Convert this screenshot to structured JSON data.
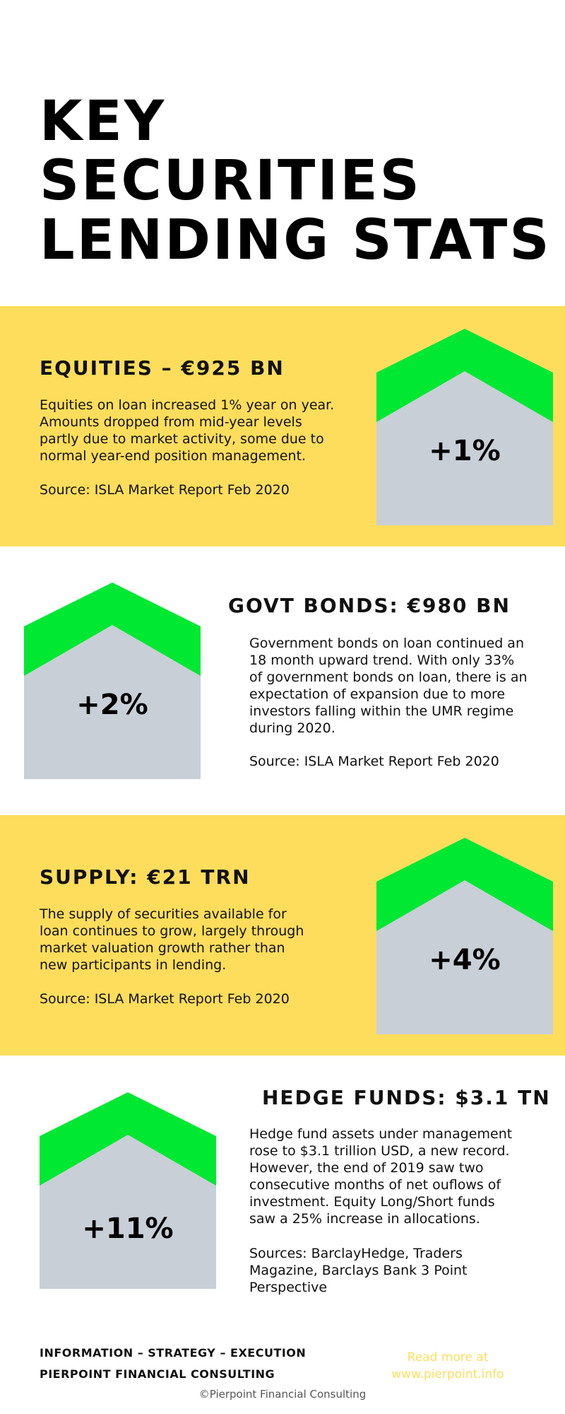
{
  "title": {
    "line1": "KEY SECURITIES",
    "line2": "LENDING STATS"
  },
  "colors": {
    "band": "#fedd5c",
    "arrow": "#00e832",
    "house": "#c8cfd7"
  },
  "sections": [
    {
      "heading": "EQUITIES – €925 BN",
      "lines": [
        "Equities on loan increased 1% year on year.",
        "Amounts dropped from mid-year levels",
        "partly due to market activity, some due to",
        "normal year-end position management."
      ],
      "source": "Source:  ISLA Market Report Feb 2020",
      "change": "+1%"
    },
    {
      "heading": "GOVT BONDS: €980 BN",
      "lines": [
        "Government bonds on loan continued an",
        "18 month upward trend.  With only 33%",
        "of government bonds on loan, there is an",
        "expectation of expansion due to more",
        "investors falling within the UMR regime",
        "during 2020."
      ],
      "source": "Source: ISLA Market Report Feb 2020",
      "change": "+2%"
    },
    {
      "heading": "SUPPLY: €21 TRN",
      "lines": [
        "The supply of securities available for",
        "loan continues to grow, largely through",
        "market valuation growth rather than",
        "new participants in lending."
      ],
      "source": "Source: ISLA Market Report Feb 2020",
      "change": "+4%"
    },
    {
      "heading": "HEDGE FUNDS: $3.1 TN",
      "lines": [
        "Hedge fund assets under management",
        "rose to $3.1 trillion USD, a new record.",
        "However, the end of 2019 saw two",
        "consecutive months of net ouflows of",
        "investment.  Equity Long/Short funds",
        "saw a 25% increase in allocations."
      ],
      "source_lines": [
        "Sources:  BarclayHedge, Traders",
        "Magazine, Barclays Bank 3 Point",
        "Perspective"
      ],
      "change": "+11%"
    }
  ],
  "footer": {
    "tagline": "INFORMATION – STRATEGY – EXECUTION",
    "company": "PIERPOINT FINANCIAL CONSULTING",
    "readmore_line1": "Read more at",
    "readmore_line2": "www.pierpoint.info",
    "copyright": "©Pierpoint Financial Consulting"
  }
}
